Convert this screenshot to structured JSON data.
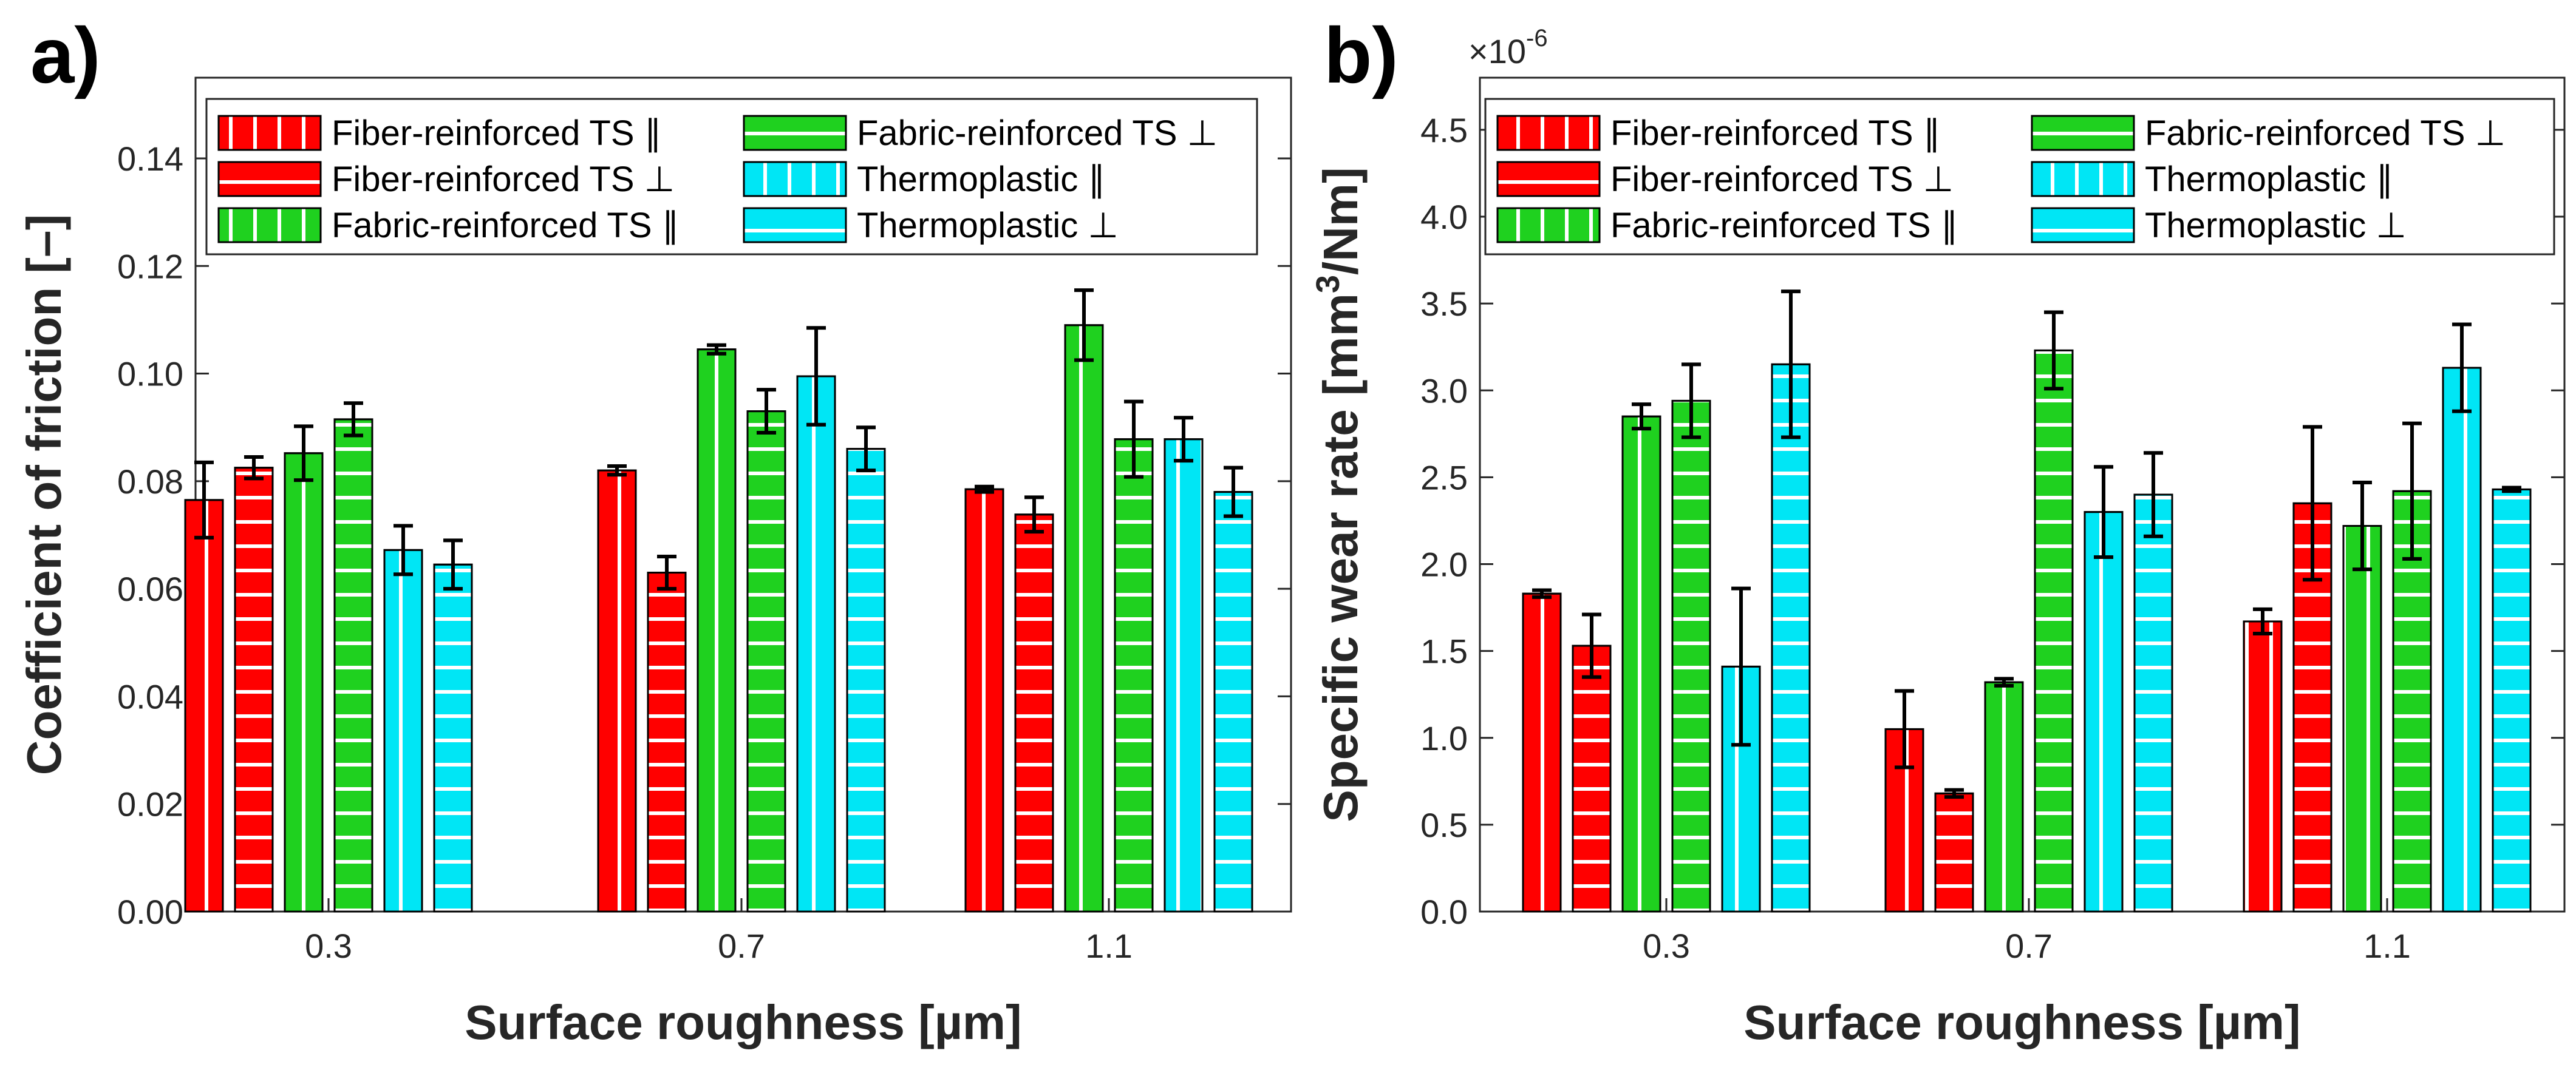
{
  "chart_data": [
    {
      "type": "bar",
      "panel_label": "a)",
      "xlabel": "Surface roughness [µm]",
      "ylabel": "Coefficient of friction [–]",
      "ylim": [
        0,
        0.155
      ],
      "yticks": [
        "0.00",
        "0.02",
        "0.04",
        "0.06",
        "0.08",
        "0.10",
        "0.12",
        "0.14"
      ],
      "grid": false,
      "legend_position": "top",
      "categories": [
        "0.3",
        "0.7",
        "1.1"
      ],
      "series": [
        {
          "name": "Fiber-reinforced TS ∥",
          "color": "#ff0000",
          "hatch": "vertical",
          "values": [
            0.0765,
            0.082,
            0.0785
          ],
          "errors": [
            0.007,
            0.0008,
            0.0005
          ]
        },
        {
          "name": "Fiber-reinforced TS ⊥",
          "color": "#ff0000",
          "hatch": "horizontal",
          "values": [
            0.0825,
            0.063,
            0.0738
          ],
          "errors": [
            0.002,
            0.003,
            0.0032
          ]
        },
        {
          "name": "Fabric-reinforced TS ∥",
          "color": "#1fd11f",
          "hatch": "vertical",
          "values": [
            0.0852,
            0.1045,
            0.109
          ],
          "errors": [
            0.005,
            0.0008,
            0.0065
          ]
        },
        {
          "name": "Fabric-reinforced TS ⊥",
          "color": "#1fd11f",
          "hatch": "horizontal",
          "values": [
            0.0915,
            0.093,
            0.0878
          ],
          "errors": [
            0.003,
            0.004,
            0.007
          ]
        },
        {
          "name": "Thermoplastic ∥",
          "color": "#00e6f5",
          "hatch": "vertical",
          "values": [
            0.0672,
            0.0995,
            0.0878
          ],
          "errors": [
            0.0045,
            0.009,
            0.004
          ]
        },
        {
          "name": "Thermoplastic ⊥",
          "color": "#00e6f5",
          "hatch": "horizontal",
          "values": [
            0.0645,
            0.086,
            0.078
          ],
          "errors": [
            0.0045,
            0.004,
            0.0045
          ]
        }
      ]
    },
    {
      "type": "bar",
      "panel_label": "b)",
      "xlabel": "Surface roughness [µm]",
      "ylabel_parts": [
        "Specific wear rate [mm",
        "3",
        "/Nm]"
      ],
      "exponent_parts": [
        "×10",
        "-6"
      ],
      "ylim": [
        0,
        4.8
      ],
      "yticks": [
        "0.0",
        "0.5",
        "1.0",
        "1.5",
        "2.0",
        "2.5",
        "3.0",
        "3.5",
        "4.0",
        "4.5"
      ],
      "grid": false,
      "legend_position": "top",
      "categories": [
        "0.3",
        "0.7",
        "1.1"
      ],
      "series": [
        {
          "name": "Fiber-reinforced TS ∥",
          "color": "#ff0000",
          "hatch": "vertical",
          "values": [
            1.83,
            1.05,
            1.67
          ],
          "errors": [
            0.02,
            0.22,
            0.07
          ]
        },
        {
          "name": "Fiber-reinforced TS ⊥",
          "color": "#ff0000",
          "hatch": "horizontal",
          "values": [
            1.53,
            0.68,
            2.35
          ],
          "errors": [
            0.18,
            0.02,
            0.44
          ]
        },
        {
          "name": "Fabric-reinforced TS ∥",
          "color": "#1fd11f",
          "hatch": "vertical",
          "values": [
            2.85,
            1.32,
            2.22
          ],
          "errors": [
            0.07,
            0.02,
            0.25
          ]
        },
        {
          "name": "Fabric-reinforced TS ⊥",
          "color": "#1fd11f",
          "hatch": "horizontal",
          "values": [
            2.94,
            3.23,
            2.42
          ],
          "errors": [
            0.21,
            0.22,
            0.39
          ]
        },
        {
          "name": "Thermoplastic ∥",
          "color": "#00e6f5",
          "hatch": "vertical",
          "values": [
            1.41,
            2.3,
            3.13
          ],
          "errors": [
            0.45,
            0.26,
            0.25
          ]
        },
        {
          "name": "Thermoplastic ⊥",
          "color": "#00e6f5",
          "hatch": "horizontal",
          "values": [
            3.15,
            2.4,
            2.43
          ],
          "errors": [
            0.42,
            0.24,
            0.01
          ]
        }
      ]
    }
  ]
}
